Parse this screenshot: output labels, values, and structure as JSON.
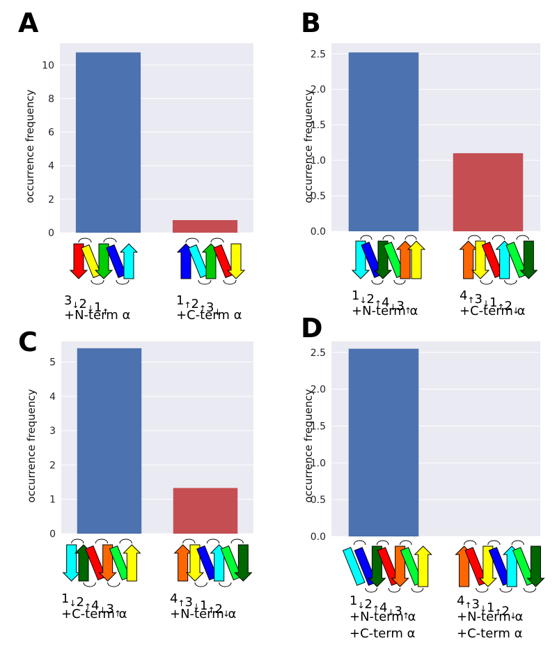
{
  "colors": {
    "plot_background": "#EAEAF2",
    "grid": "#FFFFFF",
    "bar_first": "#4C72B0",
    "bar_second": "#C44E52",
    "strand_palette": [
      "#FF0000",
      "#FFFF00",
      "#00CC00",
      "#0000FF",
      "#00FFFF",
      "#FF6600",
      "#006600",
      "#00FF33"
    ]
  },
  "panels": [
    {
      "letter": "A",
      "ylabel": "occurrence frequency",
      "labels": [
        {
          "topology": [
            [
              "3",
              "↓"
            ],
            [
              "2",
              "↓"
            ],
            [
              "1",
              "↑"
            ]
          ],
          "lines": [
            "+N-term α"
          ]
        },
        {
          "topology": [
            [
              "1",
              "↑"
            ],
            [
              "2",
              "↑"
            ],
            [
              "3",
              "↓"
            ]
          ],
          "lines": [
            "+C-term α"
          ]
        }
      ]
    },
    {
      "letter": "B",
      "ylabel": "occurrence frequency",
      "labels": [
        {
          "topology": [
            [
              "1",
              "↓"
            ],
            [
              "2",
              "↑"
            ],
            [
              "4",
              "↓"
            ],
            [
              "3",
              "↑"
            ]
          ],
          "lines": [
            "+N-term α"
          ]
        },
        {
          "topology": [
            [
              "4",
              "↑"
            ],
            [
              "3",
              "↓"
            ],
            [
              "1",
              "↑"
            ],
            [
              "2",
              "↓"
            ]
          ],
          "lines": [
            "+C-term α"
          ]
        }
      ]
    },
    {
      "letter": "C",
      "ylabel": "occurrence frequency",
      "labels": [
        {
          "topology": [
            [
              "1",
              "↓"
            ],
            [
              "2",
              "↑"
            ],
            [
              "4",
              "↓"
            ],
            [
              "3",
              "↑"
            ]
          ],
          "lines": [
            "+C-term α"
          ]
        },
        {
          "topology": [
            [
              "4",
              "↑"
            ],
            [
              "3",
              "↓"
            ],
            [
              "1",
              "↑"
            ],
            [
              "2",
              "↓"
            ]
          ],
          "lines": [
            "+N-term α"
          ]
        }
      ]
    },
    {
      "letter": "D",
      "ylabel": "occurrence frequency",
      "labels": [
        {
          "topology": [
            [
              "1",
              "↓"
            ],
            [
              "2",
              "↑"
            ],
            [
              "4",
              "↓"
            ],
            [
              "3",
              "↑"
            ]
          ],
          "lines": [
            "+N-term α",
            "+C-term α"
          ]
        },
        {
          "topology": [
            [
              "4",
              "↑"
            ],
            [
              "3",
              "↓"
            ],
            [
              "1",
              "↑"
            ],
            [
              "2",
              "↓"
            ]
          ],
          "lines": [
            "+N-term α",
            "+C-term α"
          ]
        }
      ]
    }
  ],
  "chart_data": [
    {
      "type": "bar",
      "title": "",
      "xlabel": "",
      "ylabel": "occurrence frequency",
      "categories": [
        "3↓2↓1↑ +N-term α",
        "1↑2↑3↓ +C-term α"
      ],
      "values": [
        10.75,
        0.75
      ],
      "ylim": [
        0,
        11.3
      ],
      "yticks": [
        0,
        2,
        4,
        6,
        8,
        10
      ],
      "ytick_labels": [
        "0",
        "2",
        "4",
        "6",
        "8",
        "10"
      ],
      "grid": true
    },
    {
      "type": "bar",
      "title": "",
      "xlabel": "",
      "ylabel": "occurrence frequency",
      "categories": [
        "1↓2↑4↓3↑ +N-term α",
        "4↑3↓1↑2↓ +C-term α"
      ],
      "values": [
        2.52,
        1.1
      ],
      "ylim": [
        0,
        2.65
      ],
      "yticks": [
        0,
        0.5,
        1.0,
        1.5,
        2.0,
        2.5
      ],
      "ytick_labels": [
        "0.0",
        "0.5",
        "1.0",
        "1.5",
        "2.0",
        "2.5"
      ],
      "grid": true
    },
    {
      "type": "bar",
      "title": "",
      "xlabel": "",
      "ylabel": "occurrence frequency",
      "categories": [
        "1↓2↑4↓3↑ +C-term α",
        "4↑3↓1↑2↓ +N-term α"
      ],
      "values": [
        5.4,
        1.33
      ],
      "ylim": [
        0,
        5.6
      ],
      "yticks": [
        0,
        1,
        2,
        3,
        4,
        5
      ],
      "ytick_labels": [
        "0",
        "1",
        "2",
        "3",
        "4",
        "5"
      ],
      "grid": true
    },
    {
      "type": "bar",
      "title": "",
      "xlabel": "",
      "ylabel": "occurrence frequency",
      "categories": [
        "1↓2↑4↓3↑ +N-term α +C-term α",
        "4↑3↓1↑2↓ +N-term α +C-term α"
      ],
      "values": [
        2.55,
        0
      ],
      "ylim": [
        0,
        2.65
      ],
      "yticks": [
        0,
        0.5,
        1.0,
        1.5,
        2.0,
        2.5
      ],
      "ytick_labels": [
        "0.0",
        "0.5",
        "1.0",
        "1.5",
        "2.0",
        "2.5"
      ],
      "grid": true
    }
  ],
  "schematics": [
    [
      {
        "elements": [
          {
            "kind": "arrow",
            "dir": "down",
            "color": "#FF0000"
          },
          {
            "kind": "helix",
            "color": "#FFFF00"
          },
          {
            "kind": "arrow",
            "dir": "down",
            "color": "#00CC00"
          },
          {
            "kind": "helix",
            "color": "#0000FF"
          },
          {
            "kind": "arrow",
            "dir": "up",
            "color": "#00FFFF"
          }
        ]
      },
      {
        "elements": [
          {
            "kind": "arrow",
            "dir": "up",
            "color": "#0000FF"
          },
          {
            "kind": "helix",
            "color": "#00FFFF"
          },
          {
            "kind": "arrow",
            "dir": "up",
            "color": "#00CC00"
          },
          {
            "kind": "helix",
            "color": "#FF0000"
          },
          {
            "kind": "arrow",
            "dir": "down",
            "color": "#FFFF00"
          }
        ]
      }
    ],
    [
      {
        "elements": [
          {
            "kind": "arrow",
            "dir": "down",
            "color": "#00FFFF"
          },
          {
            "kind": "helix",
            "color": "#0000FF"
          },
          {
            "kind": "arrow",
            "dir": "down",
            "color": "#006600"
          },
          {
            "kind": "helix",
            "color": "#00FF33"
          },
          {
            "kind": "arrow",
            "dir": "up",
            "color": "#FF6600"
          },
          {
            "kind": "arrow",
            "dir": "up",
            "color": "#FFFF00"
          }
        ]
      },
      {
        "elements": [
          {
            "kind": "arrow",
            "dir": "up",
            "color": "#FF6600"
          },
          {
            "kind": "arrow",
            "dir": "down",
            "color": "#FFFF00"
          },
          {
            "kind": "helix",
            "color": "#FF0000"
          },
          {
            "kind": "arrow",
            "dir": "up",
            "color": "#00FFFF"
          },
          {
            "kind": "helix",
            "color": "#00FF33"
          },
          {
            "kind": "arrow",
            "dir": "down",
            "color": "#006600"
          }
        ]
      }
    ],
    [
      {
        "elements": [
          {
            "kind": "arrow",
            "dir": "down",
            "color": "#00FFFF"
          },
          {
            "kind": "arrow",
            "dir": "up",
            "color": "#006600"
          },
          {
            "kind": "helix",
            "color": "#FF0000"
          },
          {
            "kind": "arrow",
            "dir": "down",
            "color": "#FF6600"
          },
          {
            "kind": "helix",
            "color": "#00FF33"
          },
          {
            "kind": "arrow",
            "dir": "up",
            "color": "#FFFF00"
          }
        ]
      },
      {
        "elements": [
          {
            "kind": "arrow",
            "dir": "up",
            "color": "#FF6600"
          },
          {
            "kind": "arrow",
            "dir": "down",
            "color": "#FFFF00"
          },
          {
            "kind": "helix",
            "color": "#0000FF"
          },
          {
            "kind": "arrow",
            "dir": "up",
            "color": "#00FFFF"
          },
          {
            "kind": "helix",
            "color": "#00FF33"
          },
          {
            "kind": "arrow",
            "dir": "down",
            "color": "#006600"
          }
        ]
      }
    ],
    [
      {
        "elements": [
          {
            "kind": "helix",
            "color": "#00FFFF"
          },
          {
            "kind": "helix",
            "color": "#0000FF"
          },
          {
            "kind": "arrow",
            "dir": "down",
            "color": "#006600"
          },
          {
            "kind": "helix",
            "color": "#FF0000"
          },
          {
            "kind": "arrow",
            "dir": "down",
            "color": "#FF6600"
          },
          {
            "kind": "helix",
            "color": "#00FF33"
          },
          {
            "kind": "arrow",
            "dir": "up",
            "color": "#FFFF00"
          }
        ]
      },
      {
        "elements": [
          {
            "kind": "arrow",
            "dir": "up",
            "color": "#FF6600"
          },
          {
            "kind": "helix",
            "color": "#FF0000"
          },
          {
            "kind": "arrow",
            "dir": "down",
            "color": "#FFFF00"
          },
          {
            "kind": "helix",
            "color": "#0000FF"
          },
          {
            "kind": "arrow",
            "dir": "up",
            "color": "#00FFFF"
          },
          {
            "kind": "helix",
            "color": "#00FF33"
          },
          {
            "kind": "arrow",
            "dir": "down",
            "color": "#006600"
          }
        ]
      }
    ]
  ]
}
